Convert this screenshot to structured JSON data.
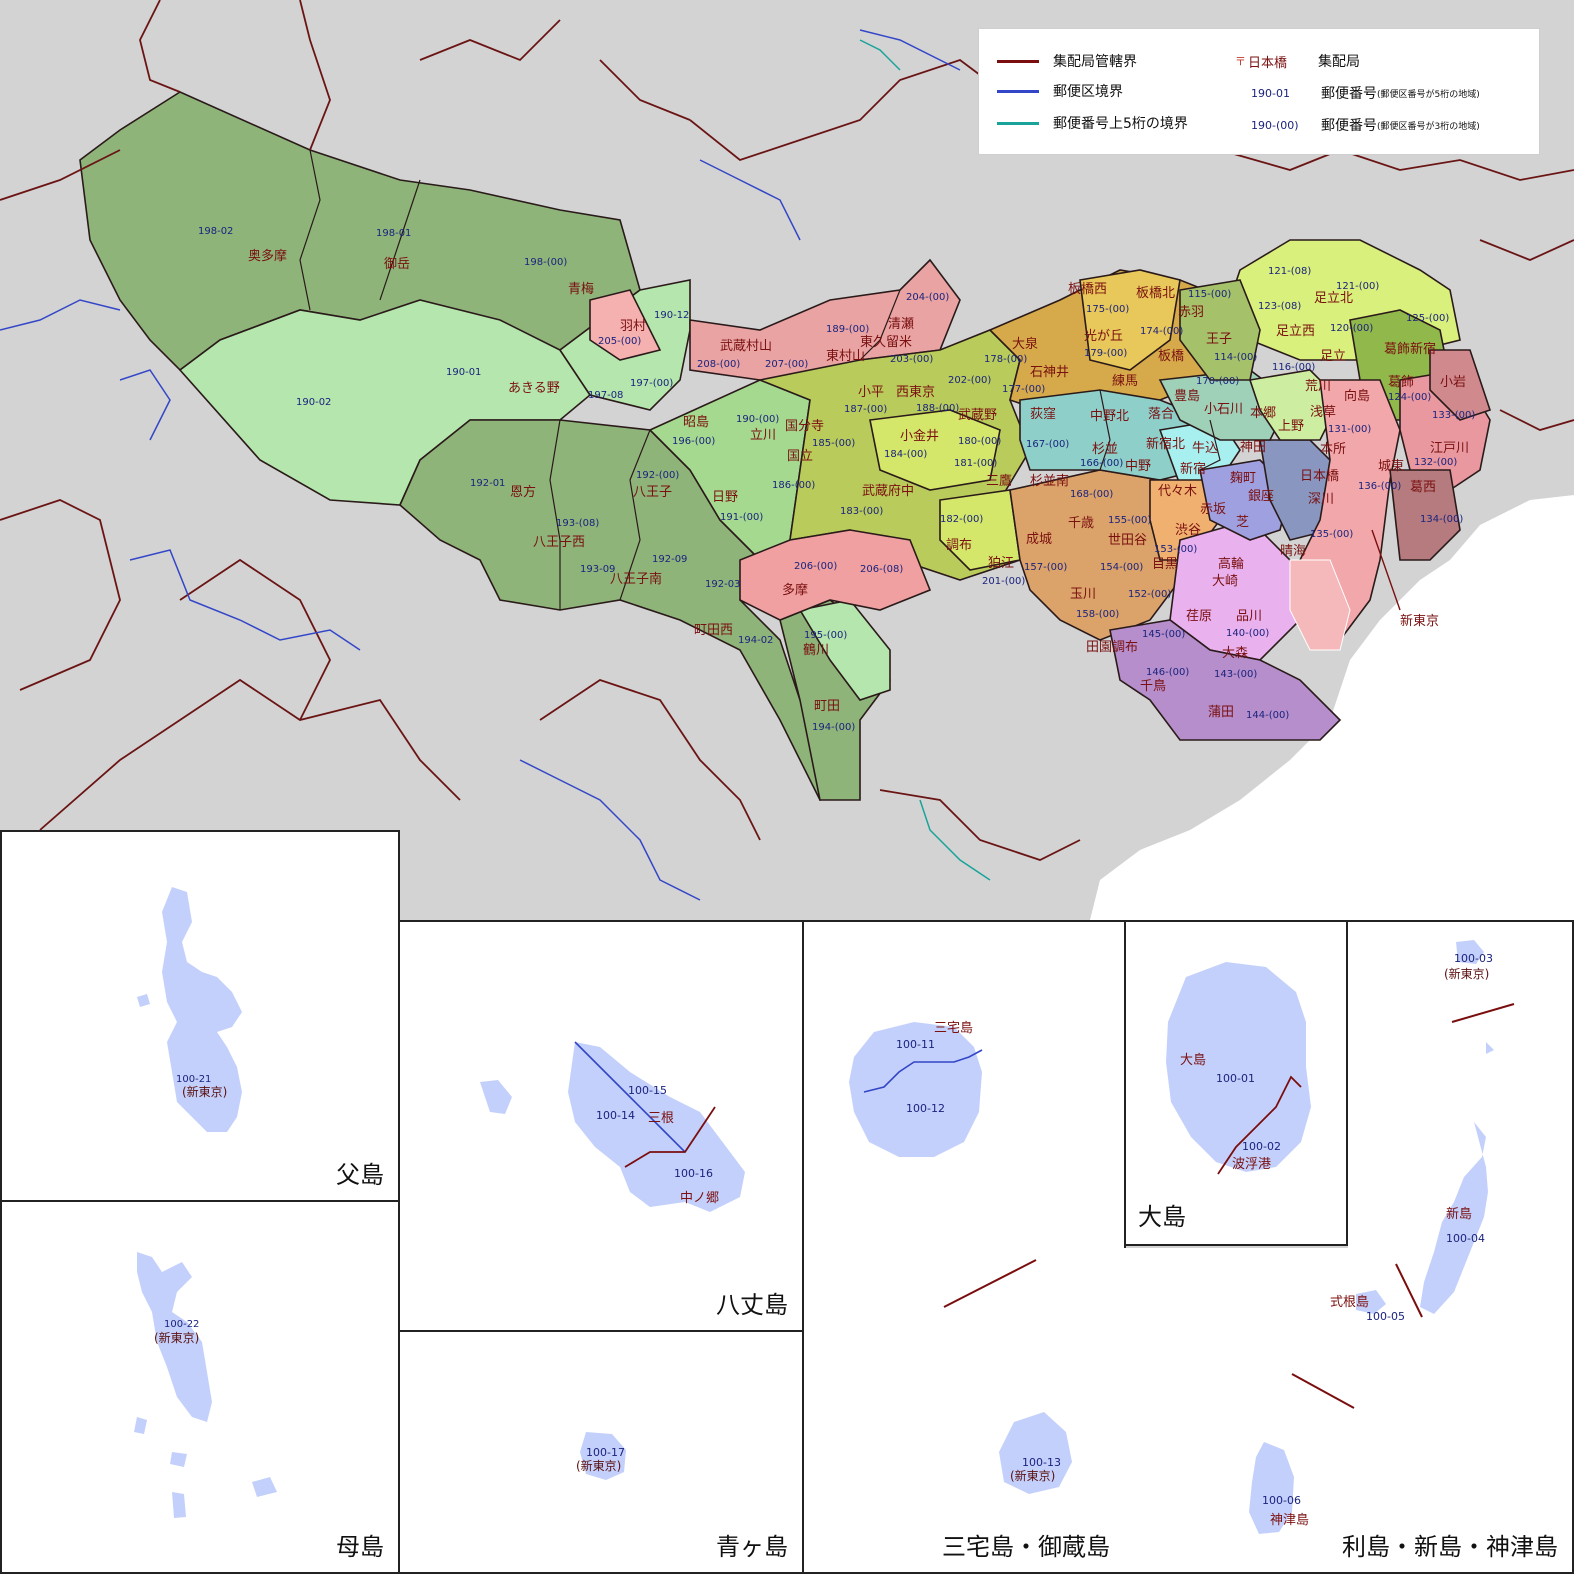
{
  "legend": {
    "route_boundary": "集配局管轄界",
    "district_boundary": "郵便区境界",
    "postal5_boundary": "郵便番号上5桁の境界",
    "office_sample": "日本橋",
    "office_label": "集配局",
    "code5_sample": "190-01",
    "code5_label": "郵便番号",
    "code5_note": "(郵便区番号が5桁の地域)",
    "code3_sample": "190-(00)",
    "code3_label": "郵便番号",
    "code3_note": "(郵便区番号が3桁の地域)"
  },
  "colors": {
    "route_boundary": "#7a0e0e",
    "district_boundary": "#3346c8",
    "postal5_boundary": "#1aa39a",
    "office_symbol": "#c0392b",
    "background": "#d3d3d3",
    "island_fill": "#c3d0fb"
  },
  "offices": [
    "奥多摩",
    "御岳",
    "青梅",
    "羽村",
    "武蔵村山",
    "清瀬",
    "東村山",
    "東久留米",
    "あきる野",
    "昭島",
    "立川",
    "恩方",
    "八王子",
    "日野",
    "国分寺",
    "国立",
    "小平",
    "西東京",
    "武蔵野",
    "小金井",
    "三鷹",
    "武蔵府中",
    "八王子西",
    "八王子南",
    "多摩",
    "調布",
    "狛江",
    "町田西",
    "鶴川",
    "町田",
    "板橋西",
    "板橋北",
    "赤羽",
    "大泉",
    "光が丘",
    "石神井",
    "練馬",
    "板橋",
    "王子",
    "豊島",
    "小石川",
    "本郷",
    "荻窪",
    "中野北",
    "落合",
    "新宿北",
    "牛込",
    "杉並",
    "中野",
    "新宿",
    "代々木",
    "杉並南",
    "千歳",
    "世田谷",
    "成城",
    "渋谷",
    "玉川",
    "目黒",
    "荏原",
    "品川",
    "高輪",
    "大崎",
    "赤坂",
    "麹町",
    "銀座",
    "芝",
    "神田",
    "田園調布",
    "大森",
    "千鳥",
    "蒲田",
    "足立北",
    "足立西",
    "足立",
    "葛飾新宿",
    "葛飾",
    "荒川",
    "浅草",
    "上野",
    "向島",
    "本所",
    "小岩",
    "江戸川",
    "城東",
    "深川",
    "日本橋",
    "葛西",
    "晴海",
    "新東京"
  ],
  "codes": [
    "198-02",
    "198-01",
    "198-(00)",
    "190-12",
    "205-(00)",
    "208-(00)",
    "207-(00)",
    "189-(00)",
    "203-(00)",
    "204-(00)",
    "190-01",
    "197-08",
    "197-(00)",
    "190-02",
    "196-(00)",
    "190-(00)",
    "192-01",
    "192-(00)",
    "193-(08)",
    "191-(00)",
    "192-09",
    "193-09",
    "192-03",
    "206-(00)",
    "206-(08)",
    "194-02",
    "195-(00)",
    "194-(00)",
    "185-(00)",
    "186-(00)",
    "187-(00)",
    "188-(00)",
    "184-(00)",
    "183-(00)",
    "180-(00)",
    "181-(00)",
    "182-(00)",
    "201-(00)",
    "202-(00)",
    "175-(00)",
    "174-(00)",
    "115-(00)",
    "178-(00)",
    "179-(00)",
    "177-(00)",
    "114-(00)",
    "170-(00)",
    "116-(00)",
    "167-(00)",
    "166-(00)",
    "168-(00)",
    "155-(00)",
    "154-(00)",
    "153-(00)",
    "152-(00)",
    "157-(00)",
    "158-(00)",
    "145-(00)",
    "146-(00)",
    "143-(00)",
    "144-(00)",
    "140-(00)",
    "121-(08)",
    "121-(00)",
    "123-(08)",
    "120-(00)",
    "125-(00)",
    "124-(00)",
    "133-(00)",
    "131-(00)",
    "132-(00)",
    "136-(00)",
    "134-(00)",
    "135-(00)"
  ],
  "insets": {
    "chichijima": {
      "title": "父島",
      "code": "100-21",
      "office": "(新東京)"
    },
    "hahajima": {
      "title": "母島",
      "code": "100-22",
      "office": "(新東京)"
    },
    "hachijojima": {
      "title": "八丈島",
      "code_a": "100-15",
      "code_b": "100-14",
      "code_c": "100-16",
      "office_a": "三根",
      "office_b": "中ノ郷"
    },
    "aogashima": {
      "title": "青ヶ島",
      "code": "100-17",
      "office": "(新東京)"
    },
    "miyake": {
      "title": "三宅島・御蔵島",
      "office_a": "三宅島",
      "code_a": "100-11",
      "code_b": "100-12",
      "code_c": "100-13",
      "office_c": "(新東京)"
    },
    "oshima": {
      "title": "大島",
      "office_a": "大島",
      "code_a": "100-01",
      "code_b": "100-02",
      "office_b": "波浮港"
    },
    "toshima": {
      "title": "利島・新島・神津島",
      "code_a": "100-03",
      "office_a": "(新東京)",
      "office_b": "新島",
      "code_b": "100-04",
      "office_c": "式根島",
      "code_c": "100-05",
      "code_d": "100-06",
      "office_d": "神津島"
    }
  }
}
